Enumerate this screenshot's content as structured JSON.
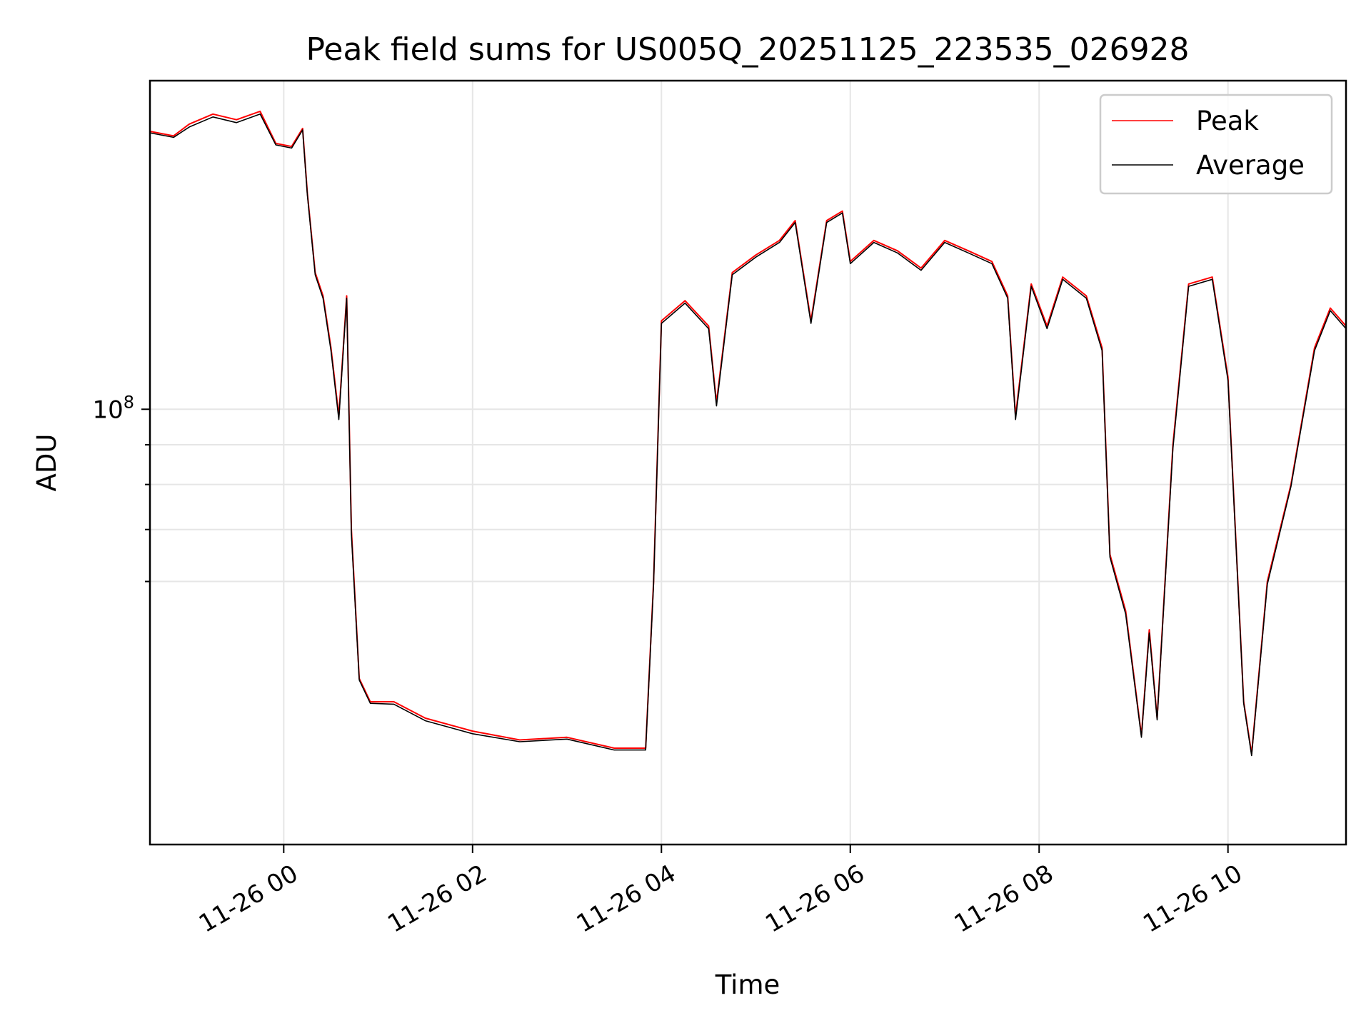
{
  "chart_data": {
    "type": "line",
    "title": "Peak field sums for US005Q_20251125_223535_026928",
    "xlabel": "Time",
    "ylabel": "ADU",
    "x_scale": "time",
    "y_scale": "log",
    "xlim": [
      "2025-11-25 22:35",
      "2025-11-26 11:15"
    ],
    "ylim": [
      27500000,
      265000000
    ],
    "grid": true,
    "legend_position": "top-right",
    "x_ticks": [
      "11-26 00",
      "11-26 02",
      "11-26 04",
      "11-26 06",
      "11-26 08",
      "11-26 10"
    ],
    "x_tick_values": [
      "2025-11-26 00:00",
      "2025-11-26 02:00",
      "2025-11-26 04:00",
      "2025-11-26 06:00",
      "2025-11-26 08:00",
      "2025-11-26 10:00"
    ],
    "y_ticks": [
      {
        "value": 100000000,
        "base": "10",
        "exp": "8"
      },
      {
        "value": 60000000,
        "minor": true
      },
      {
        "value": 70000000,
        "minor": true
      },
      {
        "value": 80000000,
        "minor": true
      },
      {
        "value": 90000000,
        "minor": true
      }
    ],
    "series": [
      {
        "name": "Peak",
        "color": "#ff0000",
        "points": [
          [
            "2025-11-25 22:35",
            228000000
          ],
          [
            "2025-11-25 22:50",
            225000000
          ],
          [
            "2025-11-25 23:00",
            233000000
          ],
          [
            "2025-11-25 23:15",
            240000000
          ],
          [
            "2025-11-25 23:30",
            236000000
          ],
          [
            "2025-11-25 23:45",
            242000000
          ],
          [
            "2025-11-25 23:55",
            220000000
          ],
          [
            "2025-11-26 00:05",
            218000000
          ],
          [
            "2025-11-26 00:12",
            230000000
          ],
          [
            "2025-11-26 00:15",
            190000000
          ],
          [
            "2025-11-26 00:20",
            150000000
          ],
          [
            "2025-11-26 00:25",
            140000000
          ],
          [
            "2025-11-26 00:30",
            120000000
          ],
          [
            "2025-11-26 00:35",
            98000000
          ],
          [
            "2025-11-26 00:40",
            140000000
          ],
          [
            "2025-11-26 00:43",
            70000000
          ],
          [
            "2025-11-26 00:48",
            45000000
          ],
          [
            "2025-11-26 00:55",
            42000000
          ],
          [
            "2025-11-26 01:10",
            42000000
          ],
          [
            "2025-11-26 01:30",
            40000000
          ],
          [
            "2025-11-26 02:00",
            38500000
          ],
          [
            "2025-11-26 02:30",
            37500000
          ],
          [
            "2025-11-26 03:00",
            37800000
          ],
          [
            "2025-11-26 03:30",
            36600000
          ],
          [
            "2025-11-26 03:50",
            36600000
          ],
          [
            "2025-11-26 03:55",
            60000000
          ],
          [
            "2025-11-26 04:00",
            130000000
          ],
          [
            "2025-11-26 04:15",
            138000000
          ],
          [
            "2025-11-26 04:30",
            128000000
          ],
          [
            "2025-11-26 04:35",
            102000000
          ],
          [
            "2025-11-26 04:45",
            150000000
          ],
          [
            "2025-11-26 05:00",
            158000000
          ],
          [
            "2025-11-26 05:15",
            165000000
          ],
          [
            "2025-11-26 05:25",
            175000000
          ],
          [
            "2025-11-26 05:35",
            130000000
          ],
          [
            "2025-11-26 05:45",
            175000000
          ],
          [
            "2025-11-26 05:55",
            180000000
          ],
          [
            "2025-11-26 06:00",
            155000000
          ],
          [
            "2025-11-26 06:15",
            165000000
          ],
          [
            "2025-11-26 06:30",
            160000000
          ],
          [
            "2025-11-26 06:45",
            152000000
          ],
          [
            "2025-11-26 07:00",
            165000000
          ],
          [
            "2025-11-26 07:15",
            160000000
          ],
          [
            "2025-11-26 07:30",
            155000000
          ],
          [
            "2025-11-26 07:40",
            140000000
          ],
          [
            "2025-11-26 07:45",
            98000000
          ],
          [
            "2025-11-26 07:55",
            145000000
          ],
          [
            "2025-11-26 08:05",
            128000000
          ],
          [
            "2025-11-26 08:15",
            148000000
          ],
          [
            "2025-11-26 08:30",
            140000000
          ],
          [
            "2025-11-26 08:40",
            120000000
          ],
          [
            "2025-11-26 08:45",
            65000000
          ],
          [
            "2025-11-26 08:55",
            55000000
          ],
          [
            "2025-11-26 09:05",
            38000000
          ],
          [
            "2025-11-26 09:10",
            52000000
          ],
          [
            "2025-11-26 09:15",
            40000000
          ],
          [
            "2025-11-26 09:25",
            90000000
          ],
          [
            "2025-11-26 09:35",
            145000000
          ],
          [
            "2025-11-26 09:50",
            148000000
          ],
          [
            "2025-11-26 10:00",
            110000000
          ],
          [
            "2025-11-26 10:10",
            42000000
          ],
          [
            "2025-11-26 10:15",
            36000000
          ],
          [
            "2025-11-26 10:25",
            60000000
          ],
          [
            "2025-11-26 10:40",
            80000000
          ],
          [
            "2025-11-26 10:55",
            120000000
          ],
          [
            "2025-11-26 11:05",
            135000000
          ],
          [
            "2025-11-26 11:15",
            128000000
          ]
        ]
      },
      {
        "name": "Average",
        "color": "#000000",
        "points": [
          [
            "2025-11-25 22:35",
            227000000
          ],
          [
            "2025-11-25 22:50",
            224000000
          ],
          [
            "2025-11-25 23:00",
            231000000
          ],
          [
            "2025-11-25 23:15",
            238000000
          ],
          [
            "2025-11-25 23:30",
            234000000
          ],
          [
            "2025-11-25 23:45",
            240000000
          ],
          [
            "2025-11-25 23:55",
            219000000
          ],
          [
            "2025-11-26 00:05",
            217000000
          ],
          [
            "2025-11-26 00:12",
            229000000
          ],
          [
            "2025-11-26 00:15",
            189000000
          ],
          [
            "2025-11-26 00:20",
            149000000
          ],
          [
            "2025-11-26 00:25",
            139000000
          ],
          [
            "2025-11-26 00:30",
            119000000
          ],
          [
            "2025-11-26 00:35",
            97000000
          ],
          [
            "2025-11-26 00:40",
            139000000
          ],
          [
            "2025-11-26 00:43",
            69000000
          ],
          [
            "2025-11-26 00:48",
            44800000
          ],
          [
            "2025-11-26 00:55",
            41800000
          ],
          [
            "2025-11-26 01:10",
            41700000
          ],
          [
            "2025-11-26 01:30",
            39700000
          ],
          [
            "2025-11-26 02:00",
            38200000
          ],
          [
            "2025-11-26 02:30",
            37300000
          ],
          [
            "2025-11-26 03:00",
            37600000
          ],
          [
            "2025-11-26 03:30",
            36400000
          ],
          [
            "2025-11-26 03:50",
            36400000
          ],
          [
            "2025-11-26 03:55",
            59500000
          ],
          [
            "2025-11-26 04:00",
            129000000
          ],
          [
            "2025-11-26 04:15",
            137000000
          ],
          [
            "2025-11-26 04:30",
            127000000
          ],
          [
            "2025-11-26 04:35",
            101000000
          ],
          [
            "2025-11-26 04:45",
            149000000
          ],
          [
            "2025-11-26 05:00",
            157000000
          ],
          [
            "2025-11-26 05:15",
            164000000
          ],
          [
            "2025-11-26 05:25",
            174000000
          ],
          [
            "2025-11-26 05:35",
            129000000
          ],
          [
            "2025-11-26 05:45",
            174000000
          ],
          [
            "2025-11-26 05:55",
            179000000
          ],
          [
            "2025-11-26 06:00",
            154000000
          ],
          [
            "2025-11-26 06:15",
            164000000
          ],
          [
            "2025-11-26 06:30",
            159000000
          ],
          [
            "2025-11-26 06:45",
            151000000
          ],
          [
            "2025-11-26 07:00",
            164000000
          ],
          [
            "2025-11-26 07:15",
            159000000
          ],
          [
            "2025-11-26 07:30",
            154000000
          ],
          [
            "2025-11-26 07:40",
            139000000
          ],
          [
            "2025-11-26 07:45",
            97000000
          ],
          [
            "2025-11-26 07:55",
            144000000
          ],
          [
            "2025-11-26 08:05",
            127000000
          ],
          [
            "2025-11-26 08:15",
            147000000
          ],
          [
            "2025-11-26 08:30",
            139000000
          ],
          [
            "2025-11-26 08:40",
            119000000
          ],
          [
            "2025-11-26 08:45",
            64500000
          ],
          [
            "2025-11-26 08:55",
            54500000
          ],
          [
            "2025-11-26 09:05",
            37800000
          ],
          [
            "2025-11-26 09:10",
            51500000
          ],
          [
            "2025-11-26 09:15",
            39800000
          ],
          [
            "2025-11-26 09:25",
            89000000
          ],
          [
            "2025-11-26 09:35",
            144000000
          ],
          [
            "2025-11-26 09:50",
            147000000
          ],
          [
            "2025-11-26 10:00",
            109000000
          ],
          [
            "2025-11-26 10:10",
            41800000
          ],
          [
            "2025-11-26 10:15",
            35800000
          ],
          [
            "2025-11-26 10:25",
            59500000
          ],
          [
            "2025-11-26 10:40",
            79500000
          ],
          [
            "2025-11-26 10:55",
            119000000
          ],
          [
            "2025-11-26 11:05",
            134000000
          ],
          [
            "2025-11-26 11:15",
            127000000
          ]
        ]
      }
    ]
  }
}
